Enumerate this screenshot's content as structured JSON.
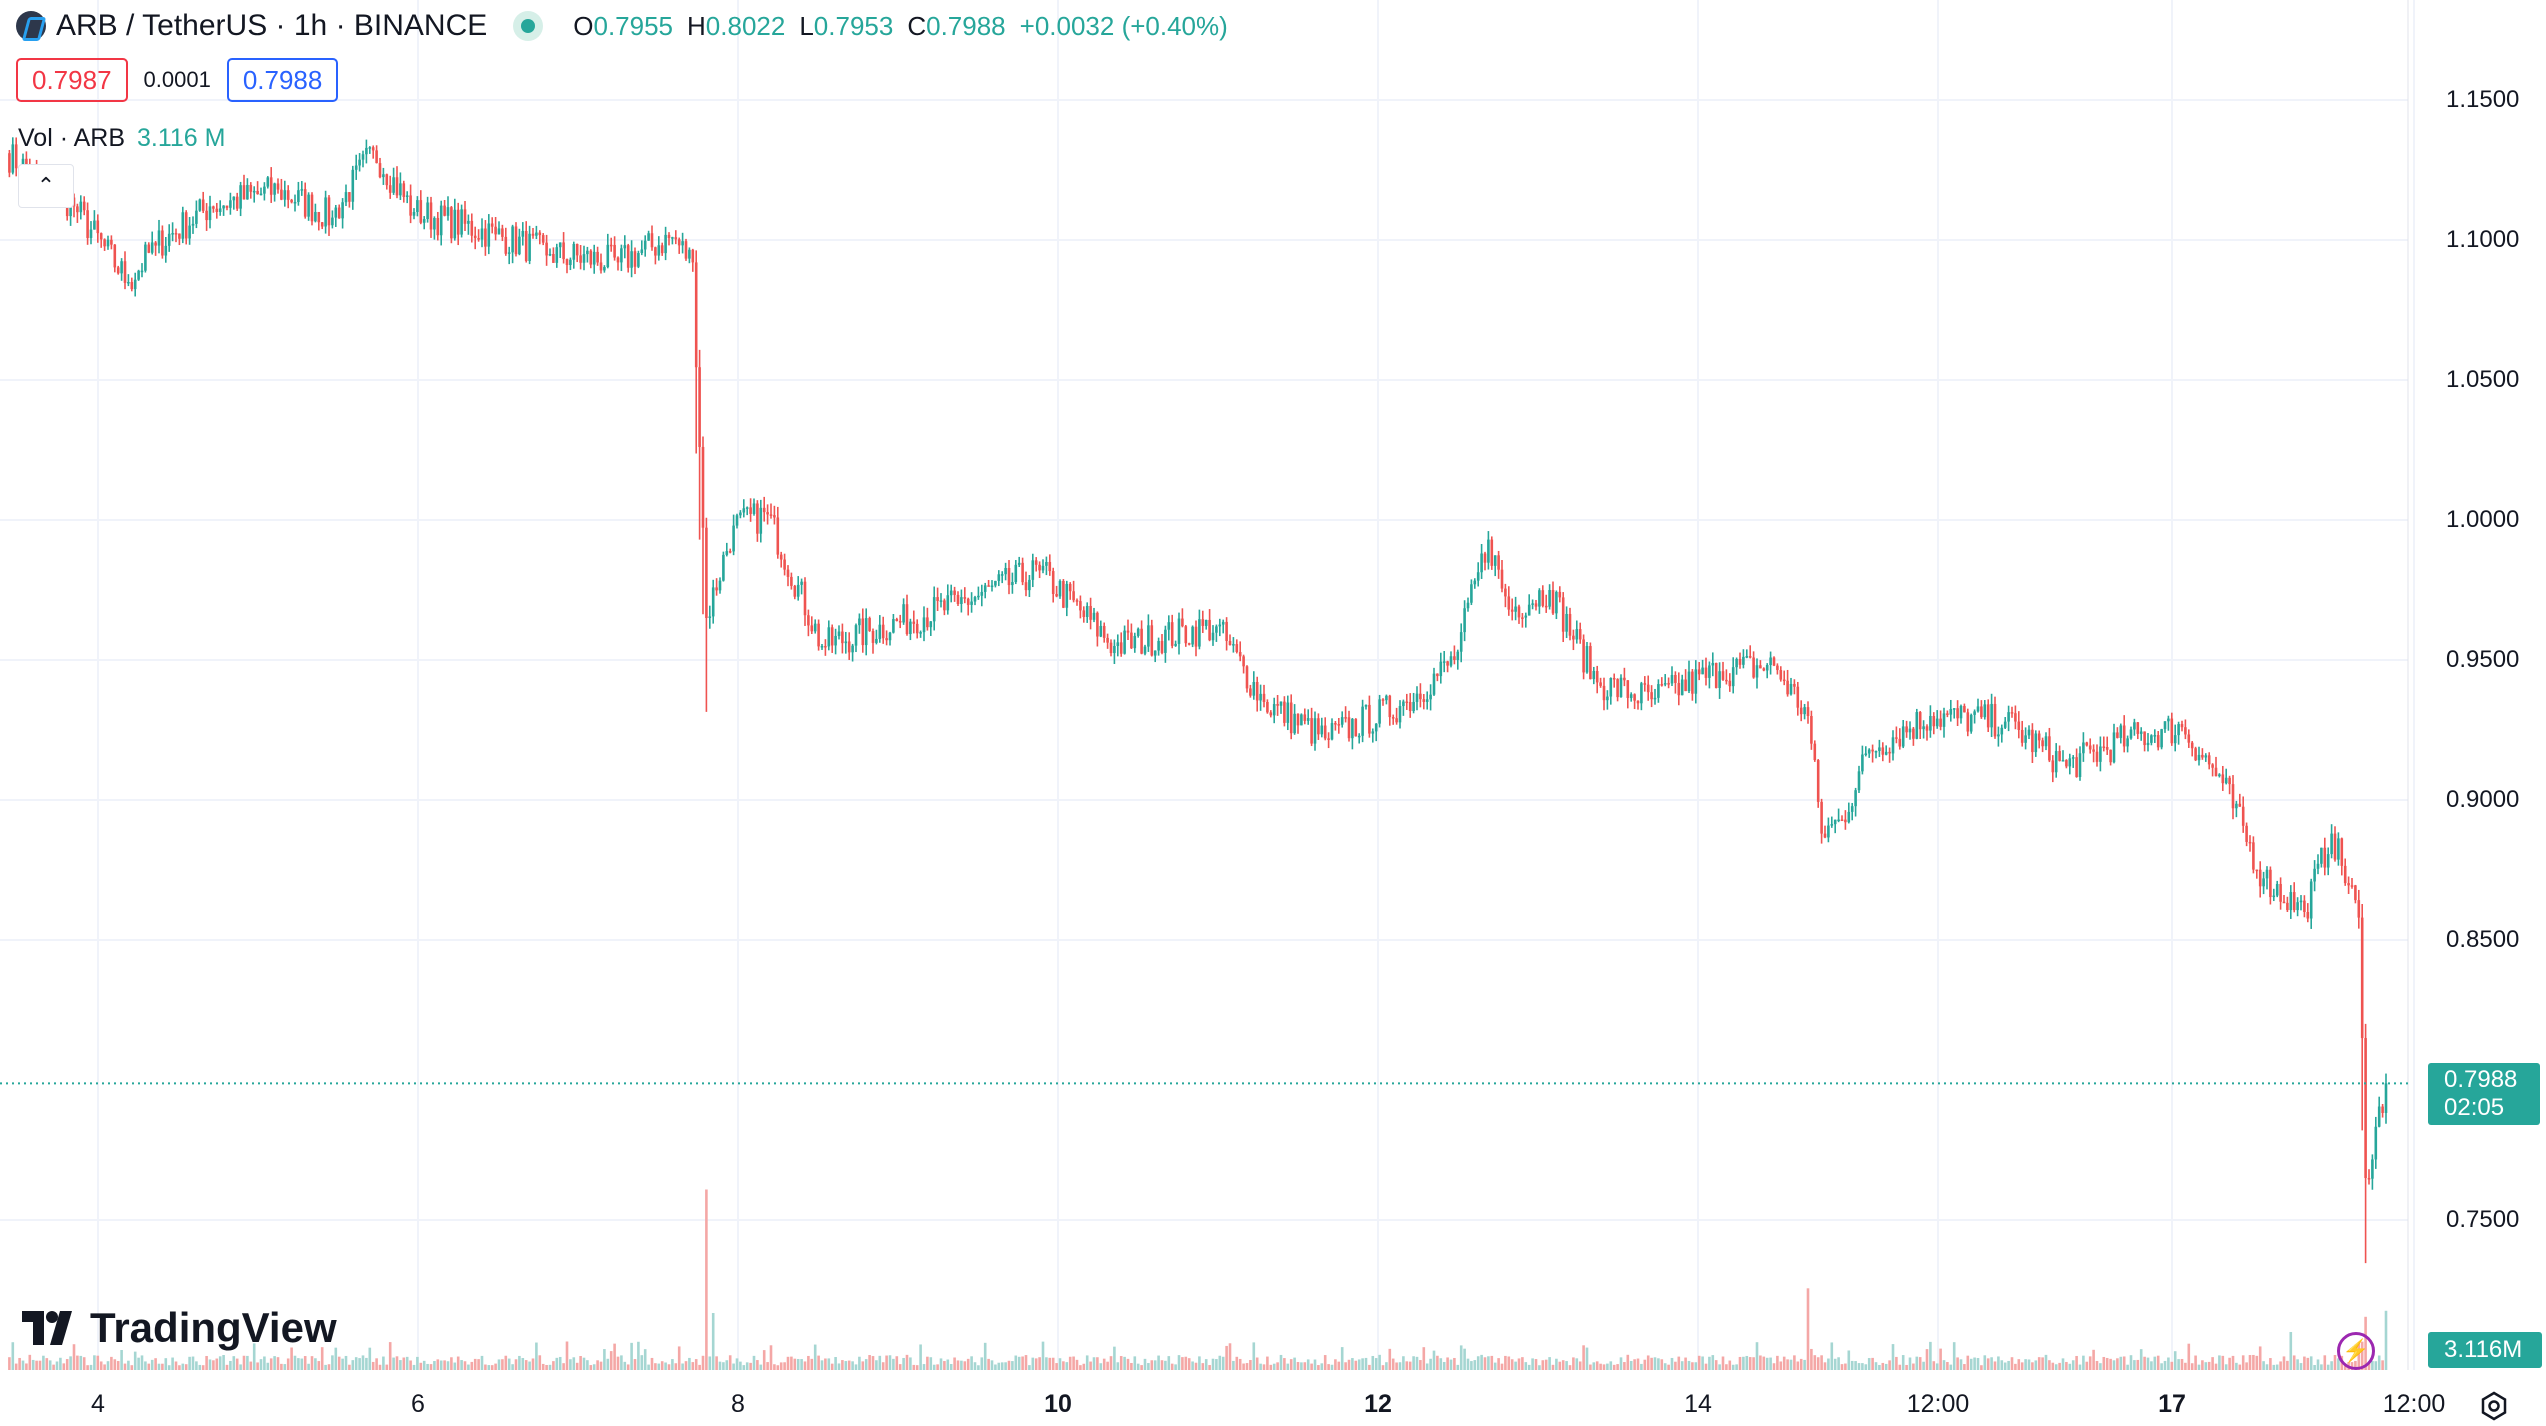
{
  "header": {
    "title": "ARB / TetherUS · 1h · BINANCE",
    "o_label": "O",
    "o_value": "0.7955",
    "h_label": "H",
    "h_value": "0.8022",
    "l_label": "L",
    "l_value": "0.7953",
    "c_label": "C",
    "c_value": "0.7988",
    "change": "+0.0032 (+0.40%)"
  },
  "trade": {
    "sell_price": "0.7987",
    "spread": "0.0001",
    "buy_price": "0.7988"
  },
  "volume": {
    "label": "Vol · ARB",
    "value": "3.116 M",
    "tag": "3.116M"
  },
  "price_tag": {
    "price": "0.7988",
    "countdown": "02:05"
  },
  "brand": "TradingView",
  "colors": {
    "up": "#26a69a",
    "down": "#ef5350",
    "up_vol": "#a5d6d2",
    "down_vol": "#f4a7a6"
  },
  "chart_data": {
    "type": "candlestick",
    "timeframe": "1h",
    "y_axis": {
      "ticks": [
        "1.1500",
        "1.1000",
        "1.0500",
        "1.0000",
        "0.9500",
        "0.9000",
        "0.8500",
        "0.7500"
      ],
      "tick_values": [
        1.15,
        1.1,
        1.05,
        1.0,
        0.95,
        0.9,
        0.85,
        0.75
      ],
      "range": [
        0.706,
        1.168
      ]
    },
    "x_axis": {
      "labels": [
        "4",
        "6",
        "8",
        "10",
        "12",
        "14",
        "12:00",
        "17",
        "12:00"
      ],
      "bold": [
        "10",
        "12",
        "17"
      ]
    },
    "last_price": 0.7988,
    "price_path": [
      {
        "t": 0,
        "p": 1.131
      },
      {
        "t": 20,
        "p": 1.112
      },
      {
        "t": 36,
        "p": 1.085
      },
      {
        "t": 44,
        "p": 1.098
      },
      {
        "t": 60,
        "p": 1.112
      },
      {
        "t": 80,
        "p": 1.118
      },
      {
        "t": 96,
        "p": 1.108
      },
      {
        "t": 108,
        "p": 1.132
      },
      {
        "t": 120,
        "p": 1.11
      },
      {
        "t": 144,
        "p": 1.102
      },
      {
        "t": 160,
        "p": 1.095
      },
      {
        "t": 180,
        "p": 1.092
      },
      {
        "t": 196,
        "p": 1.101
      },
      {
        "t": 202,
        "p": 1.092
      },
      {
        "t": 206,
        "p": 0.965
      },
      {
        "t": 214,
        "p": 0.998
      },
      {
        "t": 224,
        "p": 1.002
      },
      {
        "t": 240,
        "p": 0.955
      },
      {
        "t": 280,
        "p": 0.97
      },
      {
        "t": 304,
        "p": 0.982
      },
      {
        "t": 326,
        "p": 0.955
      },
      {
        "t": 356,
        "p": 0.962
      },
      {
        "t": 370,
        "p": 0.935
      },
      {
        "t": 388,
        "p": 0.922
      },
      {
        "t": 412,
        "p": 0.935
      },
      {
        "t": 426,
        "p": 0.95
      },
      {
        "t": 436,
        "p": 0.993
      },
      {
        "t": 442,
        "p": 0.968
      },
      {
        "t": 454,
        "p": 0.975
      },
      {
        "t": 468,
        "p": 0.942
      },
      {
        "t": 484,
        "p": 0.936
      },
      {
        "t": 504,
        "p": 0.946
      },
      {
        "t": 520,
        "p": 0.948
      },
      {
        "t": 530,
        "p": 0.93
      },
      {
        "t": 534,
        "p": 0.888
      },
      {
        "t": 540,
        "p": 0.893
      },
      {
        "t": 548,
        "p": 0.918
      },
      {
        "t": 566,
        "p": 0.93
      },
      {
        "t": 588,
        "p": 0.928
      },
      {
        "t": 606,
        "p": 0.912
      },
      {
        "t": 624,
        "p": 0.922
      },
      {
        "t": 640,
        "p": 0.926
      },
      {
        "t": 652,
        "p": 0.906
      },
      {
        "t": 664,
        "p": 0.872
      },
      {
        "t": 676,
        "p": 0.86
      },
      {
        "t": 684,
        "p": 0.888
      },
      {
        "t": 692,
        "p": 0.858
      },
      {
        "t": 694,
        "p": 0.765
      },
      {
        "t": 700,
        "p": 0.7988
      }
    ],
    "volume_spikes": [
      {
        "t": 206,
        "v": 9.5
      },
      {
        "t": 208,
        "v": 3.0
      },
      {
        "t": 530,
        "v": 4.3
      },
      {
        "t": 672,
        "v": 2.0
      },
      {
        "t": 692,
        "v": 1.4
      },
      {
        "t": 694,
        "v": 2.8
      },
      {
        "t": 700,
        "v": 3.116
      }
    ]
  }
}
